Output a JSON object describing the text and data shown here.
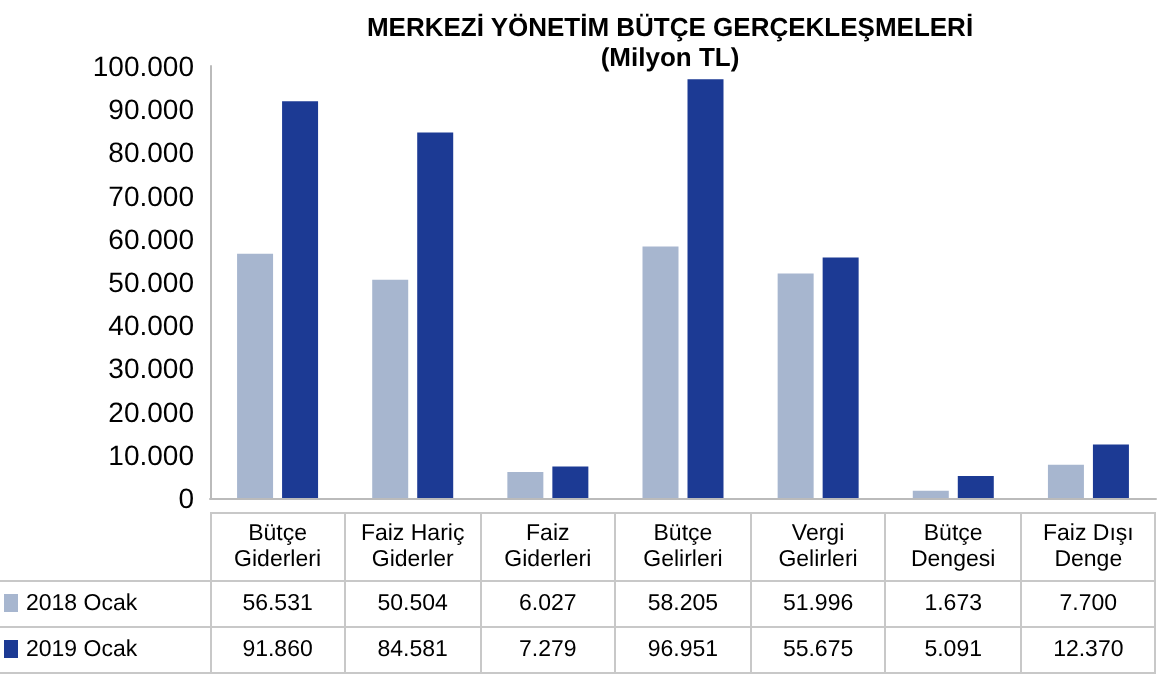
{
  "chart_data": {
    "type": "bar",
    "title": "MERKEZİ YÖNETİM BÜTÇE GERÇEKLEŞMELERİ",
    "subtitle": "(Milyon TL)",
    "categories": [
      "Bütçe Giderleri",
      "Faiz Hariç Giderler",
      "Faiz Giderleri",
      "Bütçe Gelirleri",
      "Vergi Gelirleri",
      "Bütçe Dengesi",
      "Faiz Dışı Denge"
    ],
    "series": [
      {
        "name": "2018 Ocak",
        "color": "#a7b6cf",
        "values": [
          56531,
          50504,
          6027,
          58205,
          51996,
          1673,
          7700
        ],
        "value_labels": [
          "56.531",
          "50.504",
          "6.027",
          "58.205",
          "51.996",
          "1.673",
          "7.700"
        ]
      },
      {
        "name": "2019 Ocak",
        "color": "#1c3a94",
        "values": [
          91860,
          84581,
          7279,
          96951,
          55675,
          5091,
          12370
        ],
        "value_labels": [
          "91.860",
          "84.581",
          "7.279",
          "96.951",
          "55.675",
          "5.091",
          "12.370"
        ]
      }
    ],
    "ylim": [
      0,
      100000
    ],
    "yticks": [
      {
        "value": 0,
        "label": "0"
      },
      {
        "value": 10000,
        "label": "10.000"
      },
      {
        "value": 20000,
        "label": "20.000"
      },
      {
        "value": 30000,
        "label": "30.000"
      },
      {
        "value": 40000,
        "label": "40.000"
      },
      {
        "value": 50000,
        "label": "50.000"
      },
      {
        "value": 60000,
        "label": "60.000"
      },
      {
        "value": 70000,
        "label": "70.000"
      },
      {
        "value": 80000,
        "label": "80.000"
      },
      {
        "value": 90000,
        "label": "90.000"
      },
      {
        "value": 100000,
        "label": "100.000"
      }
    ],
    "grid": false,
    "legend": "bottom"
  }
}
